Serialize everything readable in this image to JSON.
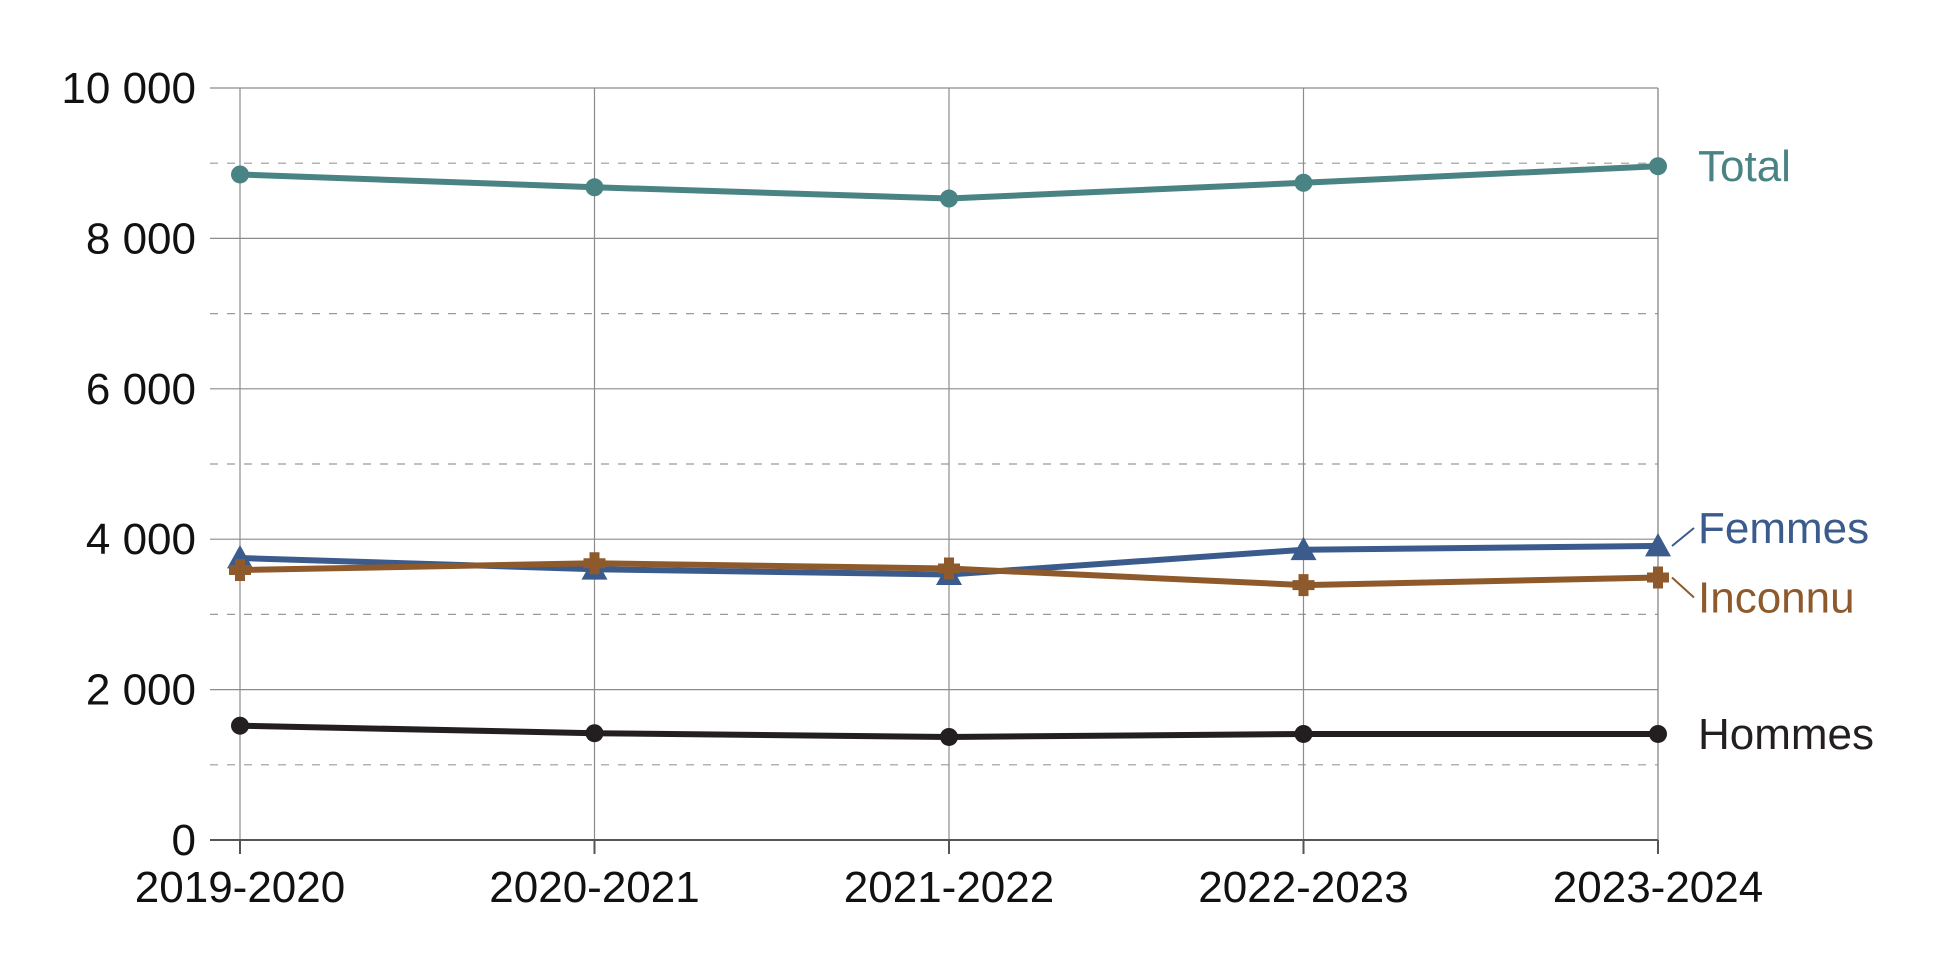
{
  "chart_data": {
    "type": "line",
    "title": "",
    "xlabel": "",
    "ylabel": "",
    "categories": [
      "2019-2020",
      "2020-2021",
      "2021-2022",
      "2022-2023",
      "2023-2024"
    ],
    "y_ticks": [
      "0",
      "2 000",
      "4 000",
      "6 000",
      "8 000",
      "10 000"
    ],
    "y_tick_values": [
      0,
      2000,
      4000,
      6000,
      8000,
      10000
    ],
    "ylim": [
      0,
      10000
    ],
    "grid": {
      "major": true,
      "minor_dashed": true,
      "vertical": true
    },
    "legend_placement": "direct labels at right end of each line",
    "series": [
      {
        "name": "Total",
        "values": [
          8850,
          8680,
          8530,
          8740,
          8960
        ],
        "color": "#4a8383",
        "marker": "circle"
      },
      {
        "name": "Femmes",
        "values": [
          3750,
          3600,
          3530,
          3860,
          3910
        ],
        "color": "#3b5b8c",
        "marker": "triangle"
      },
      {
        "name": "Inconnu",
        "values": [
          3590,
          3680,
          3610,
          3390,
          3490
        ],
        "color": "#8e5a2c",
        "marker": "plus"
      },
      {
        "name": "Hommes",
        "values": [
          1520,
          1420,
          1370,
          1410,
          1410
        ],
        "color": "#231f20",
        "marker": "circle"
      }
    ]
  }
}
